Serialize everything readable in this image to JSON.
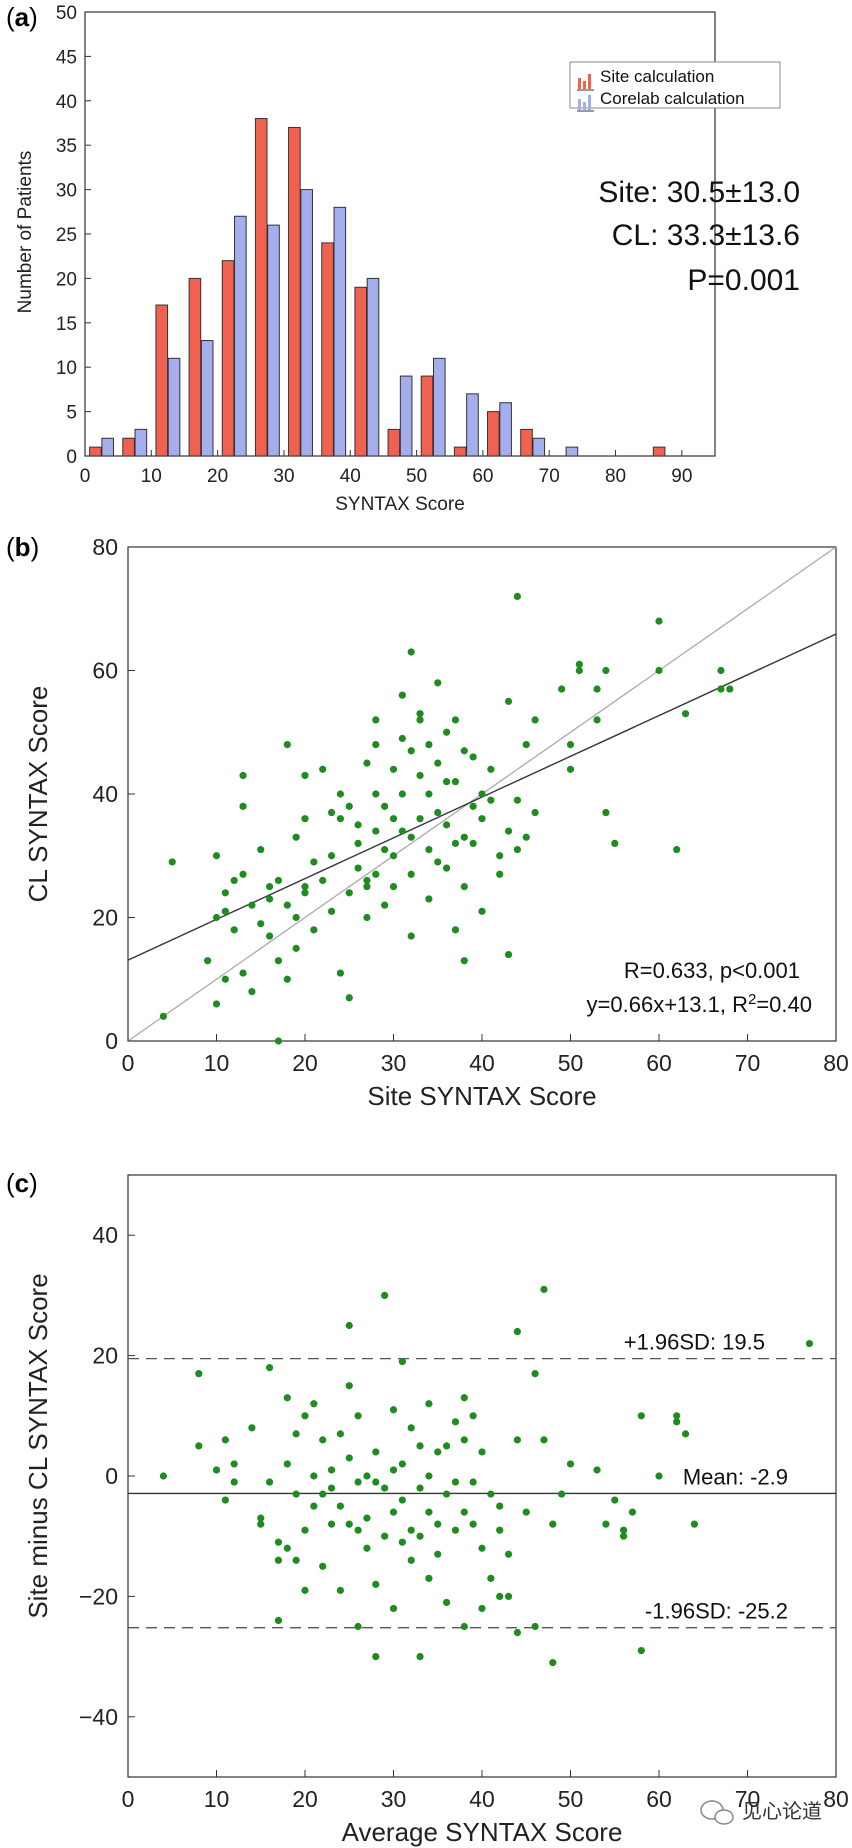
{
  "chart_data": [
    {
      "panel_label": "a",
      "type": "bar",
      "title": "",
      "xlabel": "SYNTAX Score",
      "ylabel": "Number of Patients",
      "xlim": [
        0,
        95
      ],
      "ylim": [
        0,
        50
      ],
      "xticks": [
        "0",
        "10",
        "20",
        "30",
        "40",
        "50",
        "60",
        "70",
        "80",
        "90"
      ],
      "yticks": [
        "0",
        "5",
        "10",
        "15",
        "20",
        "25",
        "30",
        "35",
        "40",
        "45",
        "50"
      ],
      "bin_centers": [
        2.5,
        7.5,
        12.5,
        17.5,
        22.5,
        27.5,
        32.5,
        37.5,
        42.5,
        47.5,
        52.5,
        57.5,
        62.5,
        67.5,
        72.5,
        77.5,
        82.5,
        87.5
      ],
      "series": [
        {
          "name": "Site calculation",
          "color": "#f0624f",
          "values": [
            1,
            2,
            17,
            20,
            22,
            38,
            37,
            24,
            19,
            3,
            9,
            1,
            5,
            3,
            0,
            0,
            0,
            1
          ]
        },
        {
          "name": "Corelab calculation",
          "color": "#a5aeed",
          "values": [
            2,
            3,
            11,
            13,
            27,
            26,
            30,
            28,
            20,
            9,
            11,
            7,
            6,
            2,
            1,
            0,
            0,
            0
          ]
        }
      ],
      "stats": [
        "Site: 30.5±13.0",
        "CL: 33.3±13.6",
        "P=0.001"
      ]
    },
    {
      "panel_label": "b",
      "type": "scatter",
      "xlabel": "Site SYNTAX Score",
      "ylabel": "CL SYNTAX Score",
      "xlim": [
        0,
        80
      ],
      "ylim": [
        0,
        80
      ],
      "xticks": [
        "0",
        "10",
        "20",
        "30",
        "40",
        "50",
        "60",
        "70",
        "80"
      ],
      "yticks": [
        "0",
        "20",
        "40",
        "60",
        "80"
      ],
      "point_color": "#1e8c1e",
      "regression": {
        "slope": 0.66,
        "intercept": 13.1
      },
      "identity_line": true,
      "annotation_r": "R=0.633, p<0.001",
      "annotation_eq": "y=0.66x+13.1, R",
      "annotation_sup": "2",
      "annotation_eq_tail": "=0.40",
      "points": [
        [
          4,
          4
        ],
        [
          5,
          29
        ],
        [
          9,
          13
        ],
        [
          10,
          30
        ],
        [
          10,
          20
        ],
        [
          10,
          6
        ],
        [
          11,
          21
        ],
        [
          11,
          10
        ],
        [
          11,
          24
        ],
        [
          12,
          18
        ],
        [
          12,
          26
        ],
        [
          13,
          43
        ],
        [
          13,
          38
        ],
        [
          13,
          27
        ],
        [
          13,
          11
        ],
        [
          14,
          22
        ],
        [
          14,
          8
        ],
        [
          15,
          19
        ],
        [
          15,
          31
        ],
        [
          16,
          23
        ],
        [
          16,
          17
        ],
        [
          16,
          25
        ],
        [
          17,
          0
        ],
        [
          17,
          13
        ],
        [
          17,
          26
        ],
        [
          18,
          48
        ],
        [
          18,
          10
        ],
        [
          18,
          22
        ],
        [
          19,
          20
        ],
        [
          19,
          15
        ],
        [
          19,
          33
        ],
        [
          20,
          25
        ],
        [
          20,
          24
        ],
        [
          20,
          43
        ],
        [
          20,
          36
        ],
        [
          21,
          29
        ],
        [
          21,
          18
        ],
        [
          22,
          44
        ],
        [
          22,
          26
        ],
        [
          23,
          37
        ],
        [
          23,
          30
        ],
        [
          23,
          21
        ],
        [
          24,
          40
        ],
        [
          24,
          36
        ],
        [
          24,
          11
        ],
        [
          25,
          7
        ],
        [
          25,
          24
        ],
        [
          25,
          38
        ],
        [
          26,
          32
        ],
        [
          26,
          28
        ],
        [
          26,
          35
        ],
        [
          27,
          45
        ],
        [
          27,
          25
        ],
        [
          27,
          20
        ],
        [
          27,
          26
        ],
        [
          28,
          52
        ],
        [
          28,
          48
        ],
        [
          28,
          40
        ],
        [
          28,
          34
        ],
        [
          28,
          27
        ],
        [
          29,
          31
        ],
        [
          29,
          38
        ],
        [
          29,
          22
        ],
        [
          30,
          36
        ],
        [
          30,
          30
        ],
        [
          30,
          25
        ],
        [
          30,
          44
        ],
        [
          31,
          56
        ],
        [
          31,
          49
        ],
        [
          31,
          34
        ],
        [
          31,
          40
        ],
        [
          32,
          63
        ],
        [
          32,
          47
        ],
        [
          32,
          33
        ],
        [
          32,
          27
        ],
        [
          32,
          17
        ],
        [
          33,
          52
        ],
        [
          33,
          53
        ],
        [
          33,
          43
        ],
        [
          33,
          36
        ],
        [
          34,
          48
        ],
        [
          34,
          40
        ],
        [
          34,
          31
        ],
        [
          34,
          23
        ],
        [
          35,
          58
        ],
        [
          35,
          45
        ],
        [
          35,
          37
        ],
        [
          35,
          29
        ],
        [
          36,
          42
        ],
        [
          36,
          50
        ],
        [
          36,
          35
        ],
        [
          36,
          28
        ],
        [
          37,
          52
        ],
        [
          37,
          42
        ],
        [
          37,
          32
        ],
        [
          37,
          18
        ],
        [
          38,
          33
        ],
        [
          38,
          47
        ],
        [
          38,
          25
        ],
        [
          38,
          13
        ],
        [
          39,
          46
        ],
        [
          39,
          38
        ],
        [
          39,
          32
        ],
        [
          40,
          40
        ],
        [
          40,
          36
        ],
        [
          40,
          21
        ],
        [
          41,
          44
        ],
        [
          41,
          39
        ],
        [
          42,
          30
        ],
        [
          42,
          27
        ],
        [
          43,
          55
        ],
        [
          43,
          34
        ],
        [
          43,
          14
        ],
        [
          44,
          72
        ],
        [
          44,
          39
        ],
        [
          44,
          31
        ],
        [
          45,
          48
        ],
        [
          45,
          33
        ],
        [
          46,
          37
        ],
        [
          46,
          52
        ],
        [
          49,
          57
        ],
        [
          50,
          44
        ],
        [
          50,
          48
        ],
        [
          51,
          60
        ],
        [
          51,
          61
        ],
        [
          53,
          57
        ],
        [
          53,
          52
        ],
        [
          54,
          37
        ],
        [
          54,
          60
        ],
        [
          55,
          32
        ],
        [
          60,
          68
        ],
        [
          60,
          60
        ],
        [
          62,
          31
        ],
        [
          63,
          53
        ],
        [
          67,
          60
        ],
        [
          67,
          57
        ],
        [
          68,
          57
        ]
      ]
    },
    {
      "panel_label": "c",
      "type": "scatter",
      "xlabel": "Average SYNTAX Score",
      "ylabel": "Site minus CL SYNTAX Score",
      "xlim": [
        0,
        80
      ],
      "ylim": [
        -50,
        50
      ],
      "xticks": [
        "0",
        "10",
        "20",
        "30",
        "40",
        "50",
        "60",
        "70",
        "80"
      ],
      "yticks": [
        "−40",
        "−20",
        "0",
        "20",
        "40"
      ],
      "ytick_values": [
        -40,
        -20,
        0,
        20,
        40
      ],
      "point_color": "#1e8c1e",
      "mean": -2.9,
      "upper_loa": 19.5,
      "lower_loa": -25.2,
      "label_upper": "+1.96SD: 19.5",
      "label_mean": "Mean: -2.9",
      "label_lower": "-1.96SD: -25.2",
      "points": [
        [
          4,
          0
        ],
        [
          8,
          5
        ],
        [
          8,
          17
        ],
        [
          10,
          1
        ],
        [
          11,
          6
        ],
        [
          11,
          -4
        ],
        [
          12,
          2
        ],
        [
          12,
          -1
        ],
        [
          14,
          8
        ],
        [
          15,
          -8
        ],
        [
          15,
          -7
        ],
        [
          16,
          18
        ],
        [
          16,
          -1
        ],
        [
          17,
          -11
        ],
        [
          17,
          -24
        ],
        [
          17,
          -14
        ],
        [
          18,
          13
        ],
        [
          18,
          -12
        ],
        [
          18,
          2
        ],
        [
          19,
          -3
        ],
        [
          19,
          7
        ],
        [
          19,
          -14
        ],
        [
          20,
          -19
        ],
        [
          20,
          -9
        ],
        [
          20,
          10
        ],
        [
          21,
          0
        ],
        [
          21,
          -5
        ],
        [
          21,
          12
        ],
        [
          22,
          6
        ],
        [
          22,
          -3
        ],
        [
          22,
          -15
        ],
        [
          23,
          -8
        ],
        [
          23,
          -2
        ],
        [
          23,
          1
        ],
        [
          24,
          -19
        ],
        [
          24,
          -5
        ],
        [
          24,
          7
        ],
        [
          25,
          15
        ],
        [
          25,
          -8
        ],
        [
          25,
          3
        ],
        [
          25,
          25
        ],
        [
          26,
          -1
        ],
        [
          26,
          -9
        ],
        [
          26,
          10
        ],
        [
          26,
          -25
        ],
        [
          27,
          0
        ],
        [
          27,
          -12
        ],
        [
          27,
          -7
        ],
        [
          28,
          4
        ],
        [
          28,
          -1
        ],
        [
          28,
          -18
        ],
        [
          28,
          -30
        ],
        [
          29,
          30
        ],
        [
          29,
          -2
        ],
        [
          29,
          -10
        ],
        [
          30,
          11
        ],
        [
          30,
          -6
        ],
        [
          30,
          1
        ],
        [
          30,
          -22
        ],
        [
          31,
          19
        ],
        [
          31,
          -4
        ],
        [
          31,
          -11
        ],
        [
          31,
          2
        ],
        [
          32,
          8
        ],
        [
          32,
          -9
        ],
        [
          32,
          -14
        ],
        [
          33,
          5
        ],
        [
          33,
          -2
        ],
        [
          33,
          -30
        ],
        [
          33,
          -10
        ],
        [
          34,
          12
        ],
        [
          34,
          -6
        ],
        [
          34,
          0
        ],
        [
          34,
          -17
        ],
        [
          35,
          4
        ],
        [
          35,
          -8
        ],
        [
          35,
          -13
        ],
        [
          36,
          5
        ],
        [
          36,
          -3
        ],
        [
          36,
          -21
        ],
        [
          37,
          9
        ],
        [
          37,
          -1
        ],
        [
          37,
          -9
        ],
        [
          38,
          13
        ],
        [
          38,
          -6
        ],
        [
          38,
          -25
        ],
        [
          38,
          6
        ],
        [
          39,
          10
        ],
        [
          39,
          -1
        ],
        [
          39,
          -8
        ],
        [
          40,
          -12
        ],
        [
          40,
          -22
        ],
        [
          40,
          4
        ],
        [
          41,
          -3
        ],
        [
          41,
          -17
        ],
        [
          42,
          -5
        ],
        [
          42,
          -9
        ],
        [
          42,
          -20
        ],
        [
          43,
          -20
        ],
        [
          43,
          -13
        ],
        [
          44,
          24
        ],
        [
          44,
          -26
        ],
        [
          44,
          6
        ],
        [
          45,
          -6
        ],
        [
          46,
          17
        ],
        [
          46,
          -25
        ],
        [
          47,
          31
        ],
        [
          47,
          6
        ],
        [
          48,
          -31
        ],
        [
          48,
          -8
        ],
        [
          49,
          -3
        ],
        [
          50,
          2
        ],
        [
          53,
          1
        ],
        [
          54,
          -8
        ],
        [
          55,
          -4
        ],
        [
          56,
          -10
        ],
        [
          56,
          -9
        ],
        [
          57,
          -6
        ],
        [
          58,
          10
        ],
        [
          58,
          -29
        ],
        [
          60,
          0
        ],
        [
          62,
          9
        ],
        [
          62,
          10
        ],
        [
          63,
          7
        ],
        [
          64,
          -8
        ],
        [
          77,
          22
        ]
      ]
    }
  ],
  "watermark": "见心论道"
}
